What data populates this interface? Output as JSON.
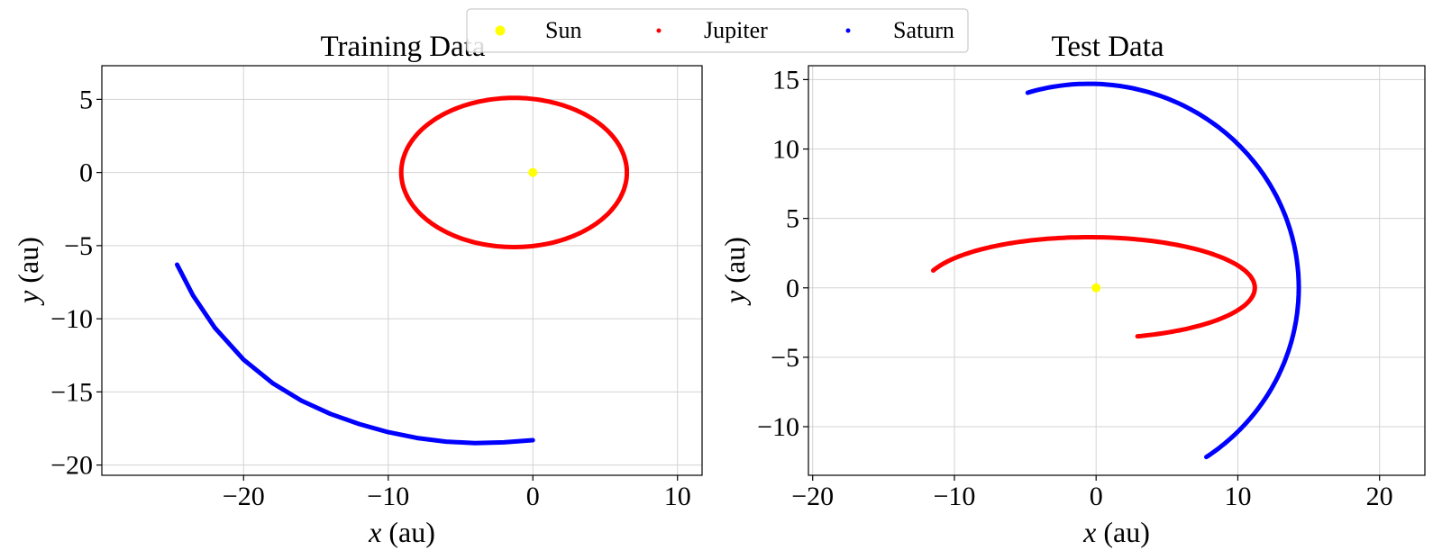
{
  "legend": {
    "entries": [
      {
        "label": "Sun",
        "color": "#ffff00"
      },
      {
        "label": "Jupiter",
        "color": "#ff0000"
      },
      {
        "label": "Saturn",
        "color": "#0000ff"
      }
    ],
    "placement": "top-center"
  },
  "chart_data": [
    {
      "type": "scatter",
      "title": "Training Data",
      "xlabel_var": "x",
      "xlabel_unit": " (au)",
      "ylabel_var": "y",
      "ylabel_unit": " (au)",
      "xlim": [
        -29.8,
        11.7
      ],
      "ylim": [
        -20.7,
        7.3
      ],
      "xticks": [
        -20,
        -10,
        0,
        10
      ],
      "yticks": [
        5,
        0,
        -5,
        -10,
        -15,
        -20
      ],
      "grid": true,
      "series": [
        {
          "name": "Sun",
          "color": "#ffff00",
          "points": [
            [
              0,
              0
            ]
          ]
        },
        {
          "name": "Jupiter",
          "color": "#ff0000",
          "orbit": {
            "center": [
              -1.3,
              0
            ],
            "rx": 7.8,
            "ry": 5.1,
            "from_deg": 0,
            "to_deg": 360
          }
        },
        {
          "name": "Saturn",
          "color": "#0000ff",
          "points": [
            [
              -24.6,
              -6.3
            ],
            [
              -23.5,
              -8.4
            ],
            [
              -22.0,
              -10.6
            ],
            [
              -20.0,
              -12.8
            ],
            [
              -18.0,
              -14.4
            ],
            [
              -16.0,
              -15.6
            ],
            [
              -14.0,
              -16.5
            ],
            [
              -12.0,
              -17.2
            ],
            [
              -10.0,
              -17.75
            ],
            [
              -8.0,
              -18.15
            ],
            [
              -6.0,
              -18.4
            ],
            [
              -4.0,
              -18.5
            ],
            [
              -2.0,
              -18.45
            ],
            [
              0.0,
              -18.3
            ]
          ]
        }
      ]
    },
    {
      "type": "scatter",
      "title": "Test Data",
      "xlabel_var": "x",
      "xlabel_unit": " (au)",
      "ylabel_var": "y",
      "ylabel_unit": " (au)",
      "xlim": [
        -20.3,
        23.2
      ],
      "ylim": [
        -13.5,
        16.0
      ],
      "xticks": [
        -20,
        -10,
        0,
        10,
        20
      ],
      "yticks": [
        15,
        10,
        5,
        0,
        -5,
        -10
      ],
      "grid": true,
      "series": [
        {
          "name": "Sun",
          "color": "#ffff00",
          "points": [
            [
              0,
              0
            ]
          ]
        },
        {
          "name": "Jupiter",
          "color": "#ff0000",
          "orbit": {
            "center": [
              -0.5,
              0
            ],
            "rx": 11.7,
            "ry": 3.65,
            "from_deg": -73,
            "to_deg": 160
          }
        },
        {
          "name": "Saturn",
          "color": "#0000ff",
          "orbit": {
            "center": [
              -0.5,
              0
            ],
            "rx": 14.8,
            "ry": 14.7,
            "from_deg": -56,
            "to_deg": 107
          }
        }
      ]
    }
  ]
}
